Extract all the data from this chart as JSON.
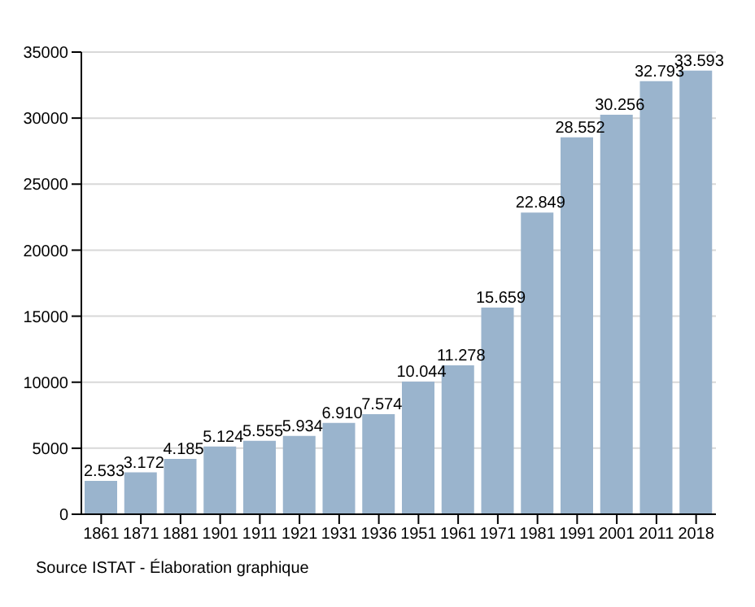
{
  "chart_data": {
    "type": "bar",
    "categories": [
      "1861",
      "1871",
      "1881",
      "1901",
      "1911",
      "1921",
      "1931",
      "1936",
      "1951",
      "1961",
      "1971",
      "1981",
      "1991",
      "2001",
      "2011",
      "2018"
    ],
    "values": [
      2533,
      3172,
      4185,
      5124,
      5555,
      5934,
      6910,
      7574,
      10044,
      11278,
      15659,
      22849,
      28552,
      30256,
      32793,
      33593
    ],
    "value_labels": [
      "2.533",
      "3.172",
      "4.185",
      "5.124",
      "5.555",
      "5.934",
      "6.910",
      "7.574",
      "10.044",
      "11.278",
      "15.659",
      "22.849",
      "28.552",
      "30.256",
      "32.793",
      "33.593"
    ],
    "color": "#9ab4cd",
    "ylim": [
      0,
      35000
    ],
    "yticks": [
      0,
      5000,
      10000,
      15000,
      20000,
      25000,
      30000,
      35000
    ],
    "grid": "y",
    "annotations": [
      "Source ISTAT - Élaboration graphique"
    ]
  }
}
